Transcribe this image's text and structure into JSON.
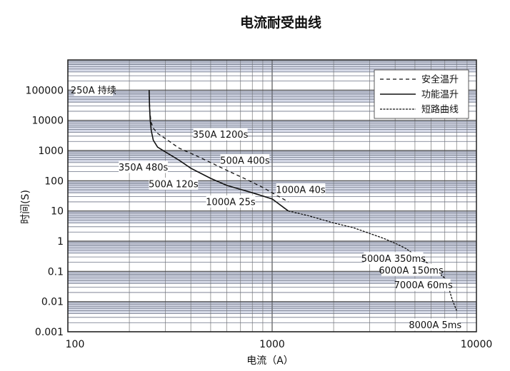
{
  "chart_data": {
    "type": "line",
    "title": "电流耐受曲线",
    "xlabel": "电流（A）",
    "ylabel": "时间(S)",
    "x_scale": "log",
    "y_scale": "log",
    "xlim": [
      100,
      10000
    ],
    "ylim": [
      0.001,
      1000000
    ],
    "x_ticks": [
      "100",
      "1000",
      "10000"
    ],
    "y_ticks": [
      "0.001",
      "0.01",
      "0.1",
      "1",
      "10",
      "100",
      "1000",
      "10000",
      "100000"
    ],
    "grid": true,
    "legend_position": "top-right",
    "series": [
      {
        "name": "安全温升",
        "style": "dashed",
        "x": [
          250,
          252,
          255,
          262,
          275,
          300,
          350,
          420,
          500,
          600,
          750,
          900,
          1000,
          1200
        ],
        "y": [
          100000,
          20000,
          9000,
          5500,
          3700,
          2500,
          1200,
          700,
          400,
          220,
          110,
          60,
          40,
          20
        ]
      },
      {
        "name": "功能温升",
        "style": "solid",
        "x": [
          250,
          251,
          253,
          256,
          262,
          275,
          300,
          350,
          400,
          500,
          600,
          800,
          1000,
          1200
        ],
        "y": [
          100000,
          30000,
          10000,
          4500,
          2200,
          1300,
          900,
          480,
          260,
          120,
          70,
          40,
          25,
          10
        ]
      },
      {
        "name": "短路曲线",
        "style": "dash-dot",
        "x": [
          1200,
          1500,
          2000,
          2500,
          3000,
          3500,
          4000,
          4500,
          5000,
          5500,
          6000,
          6500,
          7000,
          7300,
          7600,
          8000
        ],
        "y": [
          10,
          7,
          4,
          2.8,
          1.8,
          1.25,
          0.85,
          0.58,
          0.35,
          0.24,
          0.15,
          0.09,
          0.06,
          0.03,
          0.012,
          0.005
        ]
      }
    ],
    "annotations": [
      {
        "text": "250A 持续",
        "x": 250,
        "y": 100000
      },
      {
        "text": "350A 1200s",
        "x": 350,
        "y": 1200
      },
      {
        "text": "500A 400s",
        "x": 500,
        "y": 400
      },
      {
        "text": "1000A 40s",
        "x": 1000,
        "y": 40
      },
      {
        "text": "350A 480s",
        "x": 350,
        "y": 480
      },
      {
        "text": "500A 120s",
        "x": 500,
        "y": 120
      },
      {
        "text": "1000A 25s",
        "x": 1000,
        "y": 25
      },
      {
        "text": "5000A 350ms",
        "x": 5000,
        "y": 0.35
      },
      {
        "text": "6000A 150ms",
        "x": 6000,
        "y": 0.15
      },
      {
        "text": "7000A 60ms",
        "x": 7000,
        "y": 0.06
      },
      {
        "text": "8000A 5ms",
        "x": 8000,
        "y": 0.005
      }
    ]
  }
}
